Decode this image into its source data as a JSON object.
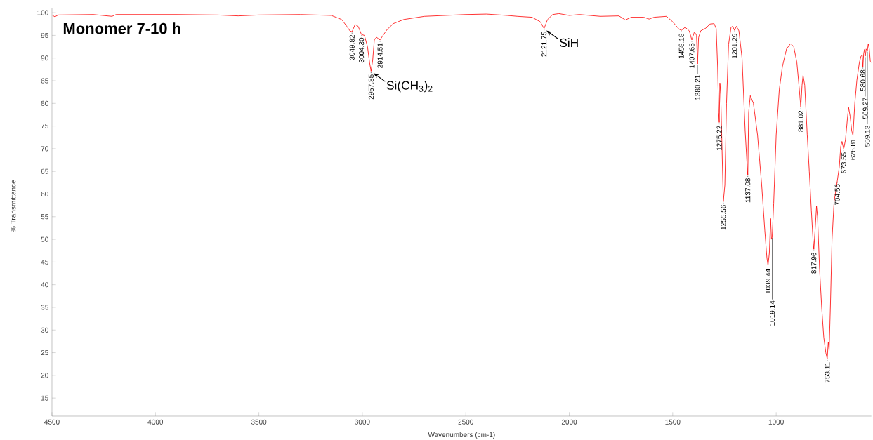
{
  "chart_data": {
    "type": "line",
    "title": "Monomer 7-10 h",
    "xlabel": "Wavenumbers (cm-1)",
    "ylabel": "% Transmittance",
    "color": "#ff0000",
    "xlim": [
      4500,
      540
    ],
    "ylim": [
      11,
      101
    ],
    "xticks": [
      4500,
      4000,
      3500,
      3000,
      2500,
      2000,
      1500,
      1000
    ],
    "yticks": [
      15,
      20,
      25,
      30,
      35,
      40,
      45,
      50,
      55,
      60,
      65,
      70,
      75,
      80,
      85,
      90,
      95,
      100
    ],
    "x": [
      4500,
      4486,
      4470,
      4300,
      4210,
      4190,
      3900,
      3700,
      3600,
      3500,
      3300,
      3150,
      3100,
      3075,
      3060,
      3049.82,
      3035,
      3020,
      3004.3,
      2990,
      2975,
      2965,
      2957.85,
      2950,
      2942,
      2932,
      2914.51,
      2900,
      2880,
      2850,
      2800,
      2700,
      2600,
      2500,
      2400,
      2300,
      2250,
      2180,
      2140,
      2121.75,
      2105,
      2080,
      2050,
      2000,
      1950,
      1850,
      1760,
      1729,
      1700,
      1640,
      1614,
      1590,
      1530,
      1500,
      1470,
      1458.18,
      1440,
      1420,
      1407.65,
      1395,
      1385,
      1380.21,
      1375,
      1365,
      1340,
      1320,
      1300,
      1290,
      1283,
      1278,
      1275.22,
      1272,
      1268,
      1255.56,
      1248,
      1240,
      1230,
      1218,
      1210,
      1201.29,
      1192,
      1180,
      1165,
      1150,
      1140,
      1137.08,
      1133,
      1125,
      1110,
      1090,
      1070,
      1055,
      1045,
      1039.44,
      1033,
      1027,
      1023,
      1019.14,
      1012,
      1000,
      985,
      970,
      950,
      930,
      915,
      900,
      888,
      881.02,
      875,
      870,
      862,
      850,
      840,
      830,
      822,
      817.96,
      812,
      805,
      800,
      790,
      780,
      770,
      760,
      753.11,
      748,
      744,
      738,
      730,
      720,
      704.56,
      695,
      688,
      682,
      673.55,
      665,
      655,
      650,
      642,
      635,
      628.81,
      620,
      610,
      598,
      590,
      584,
      580.68,
      577,
      573,
      569.27,
      565,
      559.13,
      555,
      550,
      545,
      540
    ],
    "values": [
      99.5,
      99.1,
      99.5,
      99.6,
      99.2,
      99.6,
      99.6,
      99.5,
      99.3,
      99.5,
      99.6,
      99.4,
      98.5,
      97.0,
      96.0,
      95.8,
      97.4,
      97.0,
      95.2,
      95.0,
      92.5,
      89,
      87.1,
      89.5,
      94.0,
      94.6,
      94.0,
      95.0,
      96.3,
      97.6,
      98.5,
      99.2,
      99.4,
      99.6,
      99.7,
      99.4,
      99.2,
      99.0,
      98.0,
      96.5,
      98.5,
      99.6,
      99.8,
      99.4,
      99.6,
      99.2,
      99.3,
      98.4,
      99.0,
      99.0,
      98.6,
      99.0,
      99.2,
      98.0,
      96.4,
      96.1,
      96.8,
      96.0,
      94.0,
      95.8,
      95.0,
      88.7,
      94.5,
      96.0,
      96.6,
      97.5,
      97.6,
      96.5,
      88,
      78,
      75.8,
      84.5,
      82,
      58.3,
      62,
      80,
      93,
      96.8,
      97.0,
      96.1,
      97.0,
      96.0,
      90,
      74,
      66,
      64.2,
      78,
      81.7,
      80,
      73,
      62,
      52,
      46,
      44.2,
      47,
      54.6,
      50,
      50.5,
      58,
      73,
      83,
      88.1,
      92.0,
      93.2,
      92.5,
      89,
      83,
      79.1,
      84,
      86.2,
      84,
      73.2,
      65,
      56.4,
      50,
      47.8,
      52,
      57.3,
      55,
      43.3,
      35,
      28.4,
      25,
      23.6,
      27.4,
      25.4,
      35,
      50,
      58.3,
      62.9,
      66,
      70.5,
      71.6,
      69.9,
      72,
      77,
      79.1,
      77,
      74,
      72.9,
      80,
      85.1,
      89,
      90.4,
      90.6,
      88.1,
      91.0,
      91.9,
      90.4,
      92.0,
      91.6,
      93.2,
      92,
      89.3,
      89.0
    ],
    "annotations": [
      {
        "text": "Si(CH$_{3}$)$_{2}$",
        "x": 2957.85,
        "y": 87.1
      },
      {
        "text": "SiH",
        "x": 2121.75,
        "y": 96.5
      },
      {
        "text": "3049.82",
        "x": 3049.82,
        "y": 95.8
      },
      {
        "text": "3004.30",
        "x": 3004.3,
        "y": 95.2
      },
      {
        "text": "2957.85",
        "x": 2957.85,
        "y": 87.1
      },
      {
        "text": "2914.51",
        "x": 2914.51,
        "y": 94.0
      },
      {
        "text": "2121.75",
        "x": 2121.75,
        "y": 96.5
      },
      {
        "text": "1458.18",
        "x": 1458.18,
        "y": 96.1
      },
      {
        "text": "1407.65",
        "x": 1407.65,
        "y": 94.0
      },
      {
        "text": "1380.21",
        "x": 1380.21,
        "y": 88.7
      },
      {
        "text": "1275.22",
        "x": 1275.22,
        "y": 75.8
      },
      {
        "text": "1255.56",
        "x": 1255.56,
        "y": 58.3
      },
      {
        "text": "1201.29",
        "x": 1201.29,
        "y": 96.1
      },
      {
        "text": "1137.08",
        "x": 1137.08,
        "y": 64.2
      },
      {
        "text": "1039.44",
        "x": 1039.44,
        "y": 44.2
      },
      {
        "text": "1019.14",
        "x": 1019.14,
        "y": 50.5
      },
      {
        "text": "881.02",
        "x": 881.02,
        "y": 79.1
      },
      {
        "text": "817.96",
        "x": 817.96,
        "y": 47.8
      },
      {
        "text": "753.11",
        "x": 753.11,
        "y": 23.6
      },
      {
        "text": "704.56",
        "x": 704.56,
        "y": 62.9
      },
      {
        "text": "673.55",
        "x": 673.55,
        "y": 69.9
      },
      {
        "text": "628.81",
        "x": 628.81,
        "y": 72.9
      },
      {
        "text": "580.68",
        "x": 580.68,
        "y": 88.1
      },
      {
        "text": "569.27",
        "x": 569.27,
        "y": 90.4
      },
      {
        "text": "559.13",
        "x": 559.13,
        "y": 91.6
      }
    ]
  }
}
